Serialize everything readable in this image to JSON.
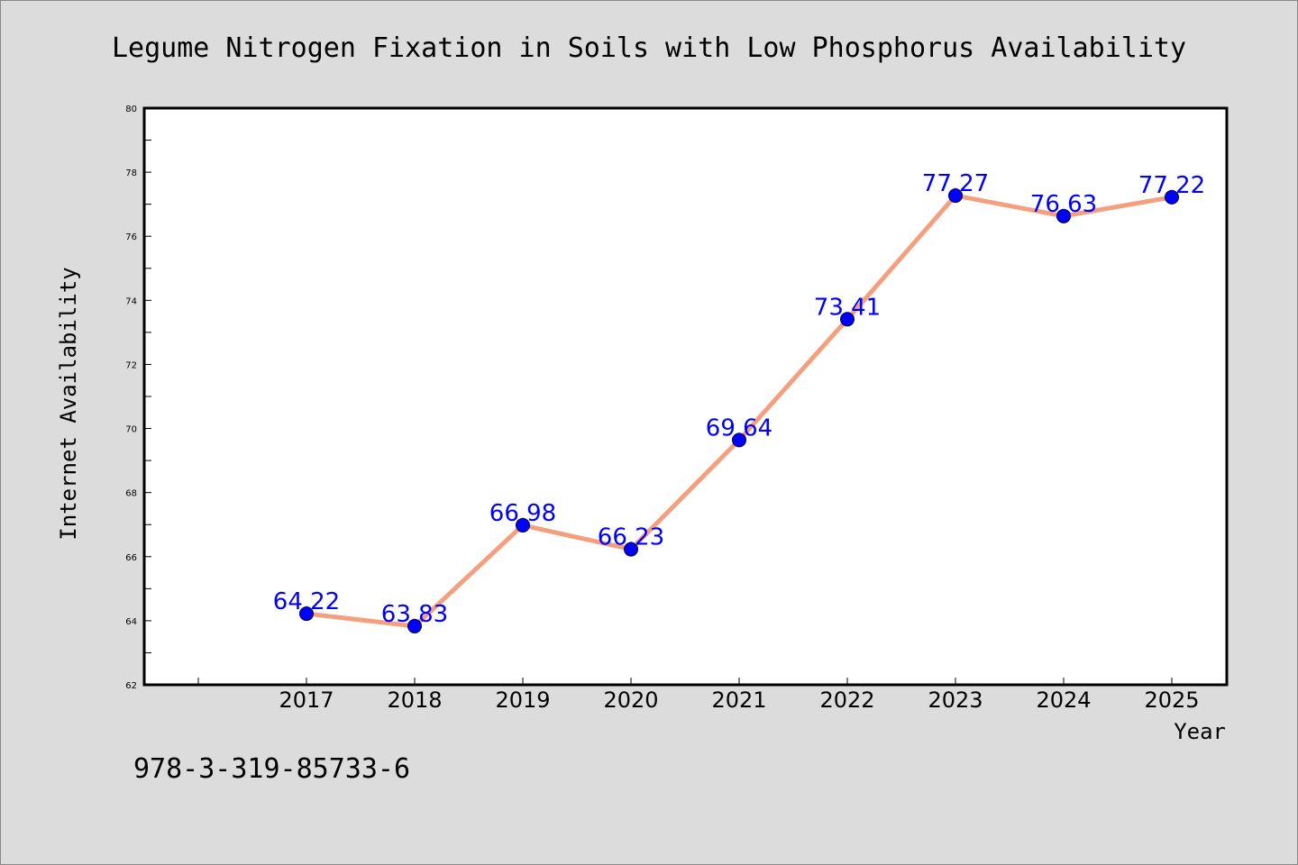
{
  "chart_data": {
    "type": "line",
    "title": "Legume Nitrogen Fixation in Soils with Low Phosphorus Availability",
    "xlabel": "Year",
    "ylabel": "Internet Availability",
    "categories": [
      "2017",
      "2018",
      "2019",
      "2020",
      "2021",
      "2022",
      "2023",
      "2024",
      "2025"
    ],
    "series": [
      {
        "values": [
          64.22,
          63.83,
          66.98,
          66.23,
          69.64,
          73.41,
          77.27,
          76.63,
          77.22
        ],
        "data_labels": [
          "64.22",
          "63.83",
          "66.98",
          "66.23",
          "69.64",
          "73.41",
          "77.27",
          "76.63",
          "77.22"
        ],
        "line_color": "#f4a07e",
        "marker_color": "#0000ff"
      }
    ],
    "ylim": [
      62,
      80
    ],
    "yticks": [
      "62",
      "64",
      "66",
      "68",
      "70",
      "72",
      "74",
      "76",
      "78",
      "80"
    ],
    "grid": false,
    "legend": "none"
  },
  "footer": {
    "code": "978-3-319-85733-6"
  },
  "colors": {
    "background": "#dcdcdc",
    "plot_background": "#ffffff",
    "line": "#f4a07e",
    "marker": "#0000ff",
    "data_label": "#0000ff"
  }
}
